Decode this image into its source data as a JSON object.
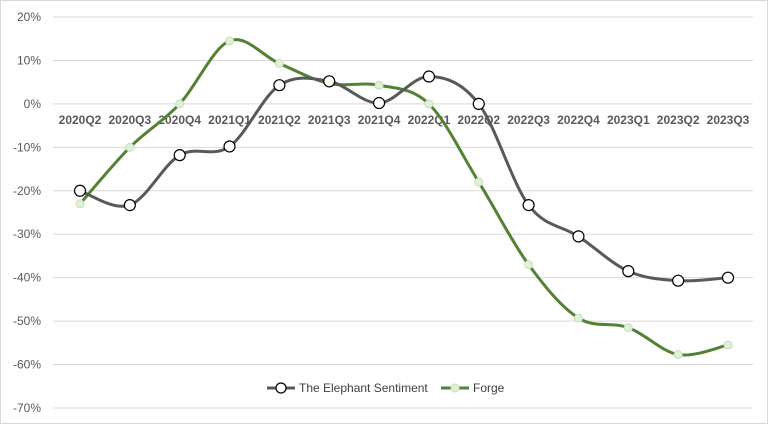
{
  "chart_data": {
    "type": "line",
    "title": "",
    "xlabel": "",
    "ylabel": "",
    "categories": [
      "2020Q2",
      "2020Q3",
      "2020Q4",
      "2021Q1",
      "2021Q2",
      "2021Q3",
      "2021Q4",
      "2022Q1",
      "2022Q2",
      "2022Q3",
      "2022Q4",
      "2023Q1",
      "2023Q2",
      "2023Q3"
    ],
    "ylim": [
      -0.7,
      0.2
    ],
    "yticks": [
      0.2,
      0.1,
      0.0,
      -0.1,
      -0.2,
      -0.3,
      -0.4,
      -0.5,
      -0.6,
      -0.7
    ],
    "ytick_labels": [
      "20%",
      "10%",
      "0%",
      "-10%",
      "-20%",
      "-30%",
      "-40%",
      "-50%",
      "-60%",
      "-70%"
    ],
    "grid": true,
    "smooth": true,
    "legend_position": "bottom",
    "series": [
      {
        "name": "The Elephant Sentiment",
        "color": "#595959",
        "marker": "circle-open",
        "values": [
          -0.2,
          -0.233,
          -0.118,
          -0.098,
          0.043,
          0.052,
          0.002,
          0.063,
          0.0,
          -0.233,
          -0.305,
          -0.385,
          -0.407,
          -0.4
        ]
      },
      {
        "name": "Forge",
        "color": "#548235",
        "marker": "circle-light",
        "values": [
          -0.23,
          -0.1,
          0.0,
          0.145,
          0.093,
          0.047,
          0.043,
          0.0,
          -0.18,
          -0.37,
          -0.493,
          -0.515,
          -0.577,
          -0.555
        ]
      }
    ]
  }
}
